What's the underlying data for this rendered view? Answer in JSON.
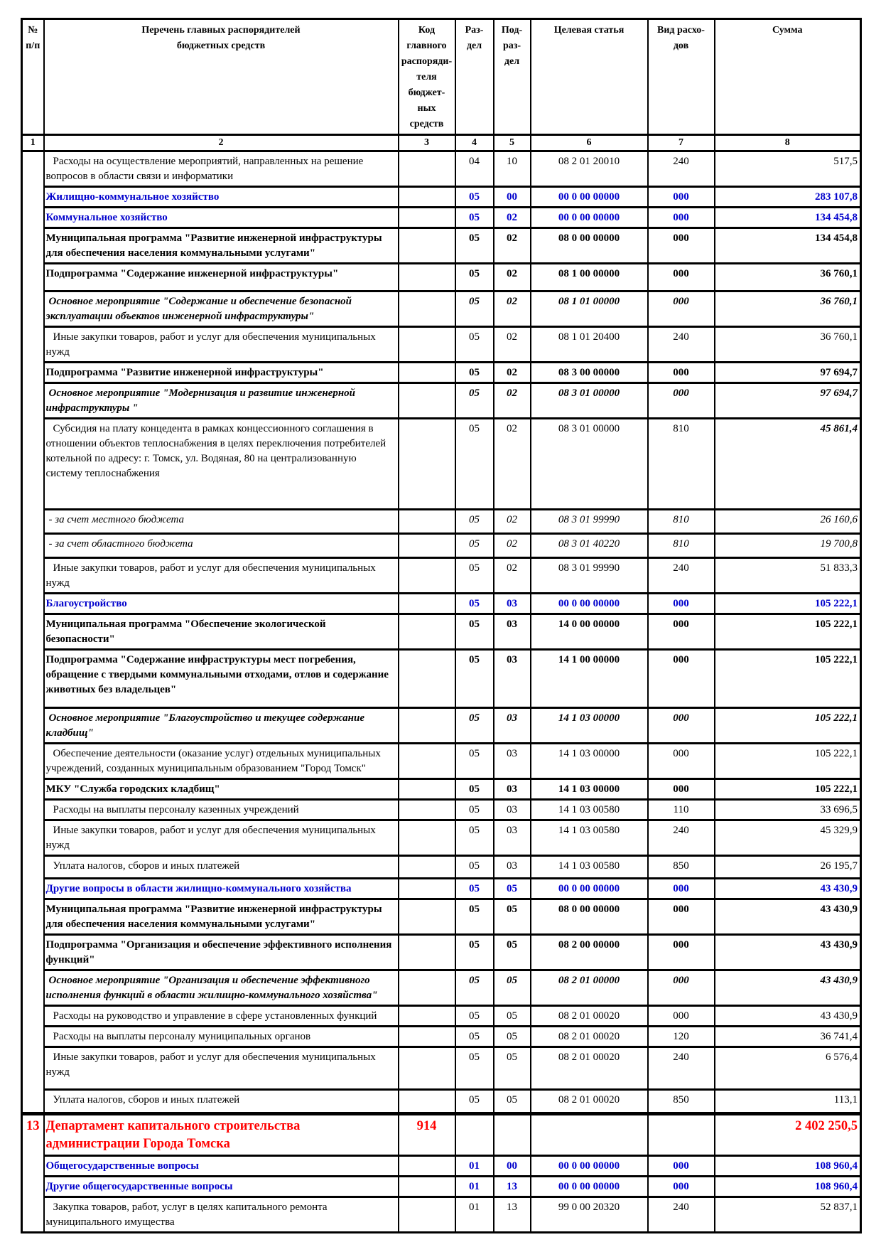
{
  "document": {
    "kind": "Ведомственная структура расходов бюджета (фрагмент таблицы)",
    "colors": {
      "section_blue": "#0000CC",
      "department_red": "#FF0000",
      "text": "#000000",
      "grid": "#000000"
    }
  },
  "table": {
    "columns": [
      {
        "id": "num",
        "label": "№\nп/п",
        "index": "1"
      },
      {
        "id": "name",
        "label": "Перечень главных распорядителей\nбюджетных средств",
        "index": "2"
      },
      {
        "id": "grbs_code",
        "label": "Код\nглавного\nраспоряди-\nтеля бюджет-\nных средств",
        "index": "3"
      },
      {
        "id": "razdel",
        "label": "Раз-\nдел",
        "index": "4"
      },
      {
        "id": "podrazdel",
        "label": "Под-\nраз-\nдел",
        "index": "5"
      },
      {
        "id": "target_article",
        "label": "Целевая статья",
        "index": "6"
      },
      {
        "id": "expense_type",
        "label": "Вид расхо-\nдов",
        "index": "7"
      },
      {
        "id": "amount",
        "label": "Сумма",
        "index": "8"
      }
    ],
    "rows": [
      {
        "num": "",
        "name": "Расходы на осуществление мероприятий, направленных на решение вопросов в области связи и информатики",
        "code": "",
        "razdel": "04",
        "podrazdel": "10",
        "target_article": "08 2 01 20010",
        "expense_type": "240",
        "amount": "517,5",
        "style": "item"
      },
      {
        "name": "Жилищно-коммунальное хозяйство",
        "code": "",
        "razdel": "05",
        "podrazdel": "00",
        "target_article": "00 0 00 00000",
        "expense_type": "000",
        "amount": "283 107,8",
        "style": "section"
      },
      {
        "name": "Коммунальное хозяйство",
        "code": "",
        "razdel": "05",
        "podrazdel": "02",
        "target_article": "00 0 00 00000",
        "expense_type": "000",
        "amount": "134 454,8",
        "style": "section"
      },
      {
        "name": "Муниципальная программа \"Развитие инженерной инфраструктуры для обеспечения населения коммунальными услугами\"",
        "code": "",
        "razdel": "05",
        "podrazdel": "02",
        "target_article": "08 0 00 00000",
        "expense_type": "000",
        "amount": "134 454,8",
        "style": "program"
      },
      {
        "name": "Подпрограмма \"Содержание инженерной инфраструктуры\"",
        "code": "",
        "razdel": "05",
        "podrazdel": "02",
        "target_article": "08 1 00 00000",
        "expense_type": "000",
        "amount": "36 760,1",
        "style": "program",
        "min_height": 39
      },
      {
        "name": "Основное мероприятие \"Содержание и обеспечение безопасной эксплуатации объектов инженерной инфраструктуры\"",
        "code": "",
        "razdel": "05",
        "podrazdel": "02",
        "target_article": "08 1 01 00000",
        "expense_type": "000",
        "amount": "36 760,1",
        "style": "measure"
      },
      {
        "name": "Иные закупки товаров, работ и услуг для обеспечения муниципальных нужд",
        "code": "",
        "razdel": "05",
        "podrazdel": "02",
        "target_article": "08 1 01 20400",
        "expense_type": "240",
        "amount": "36 760,1",
        "style": "item"
      },
      {
        "name": "Подпрограмма \"Развитие инженерной инфраструктуры\"",
        "code": "",
        "razdel": "05",
        "podrazdel": "02",
        "target_article": "08 3 00 00000",
        "expense_type": "000",
        "amount": "97 694,7",
        "style": "program"
      },
      {
        "name": "Основное мероприятие \"Модернизация и развитие инженерной инфраструктуры \"",
        "code": "",
        "razdel": "05",
        "podrazdel": "02",
        "target_article": "08 3 01 00000",
        "expense_type": "000",
        "amount": "97 694,7",
        "style": "measure"
      },
      {
        "name": "Субсидия на плату концедента в рамках концессионного соглашения в отношении объектов теплоснабжения в целях переключения потребителей котельной по адресу: г. Томск, ул. Водяная, 80 на централизованную систему теплоснабжения",
        "code": "",
        "razdel": "05",
        "podrazdel": "02",
        "target_article": "08 3 01 00000",
        "expense_type": "810",
        "amount": "45 861,4",
        "style": "item",
        "amount_emphasis": true,
        "min_height": 128
      },
      {
        "name": "- за счет местного бюджета",
        "code": "",
        "razdel": "05",
        "podrazdel": "02",
        "target_article": "08 3 01 99990",
        "expense_type": "810",
        "amount": "26 160,6",
        "style": "funding",
        "min_height": 34
      },
      {
        "name": "- за счет областного бюджета",
        "code": "",
        "razdel": "05",
        "podrazdel": "02",
        "target_article": "08 3 01 40220",
        "expense_type": "810",
        "amount": "19 700,8",
        "style": "funding",
        "min_height": 34
      },
      {
        "name": "Иные закупки товаров, работ и услуг для обеспечения муниципальных нужд",
        "code": "",
        "razdel": "05",
        "podrazdel": "02",
        "target_article": "08 3 01 99990",
        "expense_type": "240",
        "amount": "51 833,3",
        "style": "item"
      },
      {
        "name": "Благоустройство",
        "code": "",
        "razdel": "05",
        "podrazdel": "03",
        "target_article": "00 0 00 00000",
        "expense_type": "000",
        "amount": "105 222,1",
        "style": "section"
      },
      {
        "name": "Муниципальная программа \"Обеспечение экологической безопасности\"",
        "code": "",
        "razdel": "05",
        "podrazdel": "03",
        "target_article": "14 0 00 00000",
        "expense_type": "000",
        "amount": "105 222,1",
        "style": "program"
      },
      {
        "name": "Подпрограмма \"Содержание инфраструктуры мест погребения, обращение с твердыми коммунальными отходами, отлов и содержание животных без владельцев\"",
        "code": "",
        "razdel": "05",
        "podrazdel": "03",
        "target_article": "14 1 00 00000",
        "expense_type": "000",
        "amount": "105 222,1",
        "style": "program",
        "min_height": 82
      },
      {
        "name": "Основное мероприятие \"Благоустройство и текущее содержание кладбищ\"",
        "code": "",
        "razdel": "05",
        "podrazdel": "03",
        "target_article": "14 1 03 00000",
        "expense_type": "000",
        "amount": "105 222,1",
        "style": "measure"
      },
      {
        "name": "Обеспечение деятельности (оказание услуг) отдельных муниципальных учреждений, созданных муниципальным образованием \"Город Томск\"",
        "code": "",
        "razdel": "05",
        "podrazdel": "03",
        "target_article": "14 1 03 00000",
        "expense_type": "000",
        "amount": "105 222,1",
        "style": "item"
      },
      {
        "name": "МКУ \"Служба городских кладбищ\"",
        "code": "",
        "razdel": "05",
        "podrazdel": "03",
        "target_article": "14 1 03 00000",
        "expense_type": "000",
        "amount": "105 222,1",
        "style": "program"
      },
      {
        "name": "Расходы на выплаты персоналу казенных учреждений",
        "code": "",
        "razdel": "05",
        "podrazdel": "03",
        "target_article": "14 1 03 00580",
        "expense_type": "110",
        "amount": "33 696,5",
        "style": "item"
      },
      {
        "name": "Иные закупки товаров, работ и услуг для обеспечения муниципальных нужд",
        "code": "",
        "razdel": "05",
        "podrazdel": "03",
        "target_article": "14 1 03 00580",
        "expense_type": "240",
        "amount": "45 329,9",
        "style": "item"
      },
      {
        "name": "Уплата налогов, сборов и иных платежей",
        "code": "",
        "razdel": "05",
        "podrazdel": "03",
        "target_article": "14 1 03 00580",
        "expense_type": "850",
        "amount": "26 195,7",
        "style": "item",
        "min_height": 32
      },
      {
        "name": "Другие вопросы в области жилищно-коммунального хозяйства",
        "code": "",
        "razdel": "05",
        "podrazdel": "05",
        "target_article": "00 0 00 00000",
        "expense_type": "000",
        "amount": "43 430,9",
        "style": "section"
      },
      {
        "name": "Муниципальная программа \"Развитие инженерной инфраструктуры для обеспечения населения коммунальными услугами\"",
        "code": "",
        "razdel": "05",
        "podrazdel": "05",
        "target_article": "08 0 00 00000",
        "expense_type": "000",
        "amount": "43 430,9",
        "style": "program"
      },
      {
        "name": "Подпрограмма \"Организация и обеспечение эффективного исполнения функций\"",
        "code": "",
        "razdel": "05",
        "podrazdel": "05",
        "target_article": "08 2 00 00000",
        "expense_type": "000",
        "amount": "43 430,9",
        "style": "program"
      },
      {
        "name": "Основное мероприятие \"Организация и обеспечение эффективного исполнения функций в области жилищно-коммунального хозяйства\"",
        "code": "",
        "razdel": "05",
        "podrazdel": "05",
        "target_article": "08 2 01 00000",
        "expense_type": "000",
        "amount": "43 430,9",
        "style": "measure"
      },
      {
        "name": "Расходы на руководство и управление в сфере установленных функций",
        "code": "",
        "razdel": "05",
        "podrazdel": "05",
        "target_article": "08 2 01 00020",
        "expense_type": "000",
        "amount": "43 430,9",
        "style": "item"
      },
      {
        "name": "Расходы на выплаты персоналу муниципальных органов",
        "code": "",
        "razdel": "05",
        "podrazdel": "05",
        "target_article": "08 2 01 00020",
        "expense_type": "120",
        "amount": "36 741,4",
        "style": "item"
      },
      {
        "name": "Иные закупки товаров, работ и услуг для обеспечения муниципальных нужд",
        "code": "",
        "razdel": "05",
        "podrazdel": "05",
        "target_article": "08 2 01 00020",
        "expense_type": "240",
        "amount": "6 576,4",
        "style": "item",
        "min_height": 60
      },
      {
        "name": "Уплата налогов, сборов и иных платежей",
        "code": "",
        "razdel": "05",
        "podrazdel": "05",
        "target_article": "08 2 01 00020",
        "expense_type": "850",
        "amount": "113,1",
        "style": "item",
        "min_height": 34
      },
      {
        "num": "13",
        "name": "Департамент капитального строительства администрации Города Томска",
        "code": "914",
        "razdel": "",
        "podrazdel": "",
        "target_article": "",
        "expense_type": "",
        "amount": "2 402 250,5",
        "style": "department",
        "new_group": true
      },
      {
        "name": "Общегосударственные вопросы",
        "code": "",
        "razdel": "01",
        "podrazdel": "00",
        "target_article": "00 0 00 00000",
        "expense_type": "000",
        "amount": "108 960,4",
        "style": "section"
      },
      {
        "name": "Другие общегосударственные вопросы",
        "code": "",
        "razdel": "01",
        "podrazdel": "13",
        "target_article": "00 0 00 00000",
        "expense_type": "000",
        "amount": "108 960,4",
        "style": "section"
      },
      {
        "name": "Закупка товаров, работ, услуг в целях капитального ремонта муниципального имущества",
        "code": "",
        "razdel": "01",
        "podrazdel": "13",
        "target_article": "99 0 00 20320",
        "expense_type": "240",
        "amount": "52 837,1",
        "style": "item"
      }
    ]
  }
}
